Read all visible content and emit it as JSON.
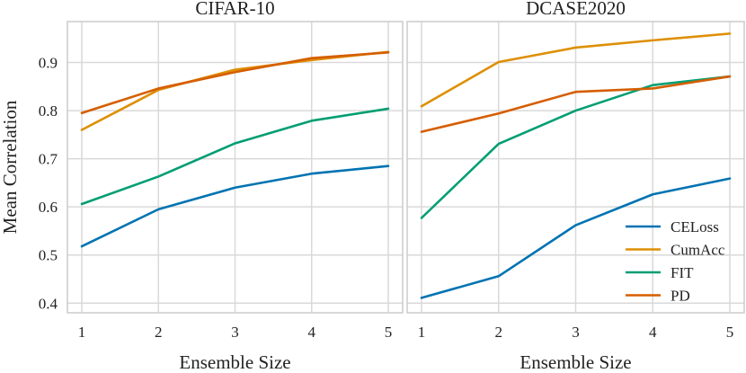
{
  "chart_data": [
    {
      "type": "line",
      "title": "CIFAR-10",
      "xlabel": "Ensemble Size",
      "ylabel": "Mean Correlation",
      "x": [
        1,
        2,
        3,
        4,
        5
      ],
      "xticks": [
        "1",
        "2",
        "3",
        "4",
        "5"
      ],
      "yticks": [
        "0.4",
        "0.5",
        "0.6",
        "0.7",
        "0.8",
        "0.9"
      ],
      "ylim": [
        0.38,
        0.985
      ],
      "grid": true,
      "series": [
        {
          "name": "CELoss",
          "color": "#0173b2",
          "values": [
            0.518,
            0.595,
            0.64,
            0.669,
            0.685
          ]
        },
        {
          "name": "CumAcc",
          "color": "#de8f05",
          "values": [
            0.76,
            0.843,
            0.885,
            0.905,
            0.922
          ]
        },
        {
          "name": "FIT",
          "color": "#029e73",
          "values": [
            0.606,
            0.663,
            0.732,
            0.779,
            0.804
          ]
        },
        {
          "name": "PD",
          "color": "#d55e00",
          "values": [
            0.795,
            0.846,
            0.88,
            0.909,
            0.921
          ]
        }
      ]
    },
    {
      "type": "line",
      "title": "DCASE2020",
      "xlabel": "Ensemble Size",
      "ylabel": "",
      "x": [
        1,
        2,
        3,
        4,
        5
      ],
      "xticks": [
        "1",
        "2",
        "3",
        "4",
        "5"
      ],
      "ylim": [
        0.38,
        0.985
      ],
      "grid": true,
      "legend": "bottom-right",
      "series": [
        {
          "name": "CELoss",
          "color": "#0173b2",
          "values": [
            0.411,
            0.456,
            0.562,
            0.626,
            0.659
          ]
        },
        {
          "name": "CumAcc",
          "color": "#de8f05",
          "values": [
            0.809,
            0.901,
            0.931,
            0.946,
            0.96
          ]
        },
        {
          "name": "FIT",
          "color": "#029e73",
          "values": [
            0.577,
            0.731,
            0.8,
            0.853,
            0.871
          ]
        },
        {
          "name": "PD",
          "color": "#d55e00",
          "values": [
            0.756,
            0.794,
            0.839,
            0.846,
            0.871
          ]
        }
      ]
    }
  ]
}
